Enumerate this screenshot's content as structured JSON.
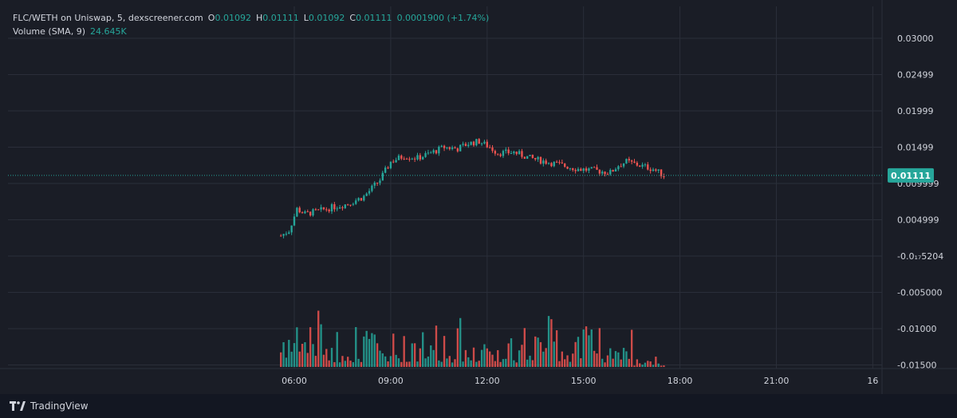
{
  "header": {
    "symbol": "FLC/WETH on Uniswap, 5, dexscreener.com",
    "o_label": "O",
    "o_value": "0.01092",
    "h_label": "H",
    "h_value": "0.01111",
    "l_label": "L",
    "l_value": "0.01092",
    "c_label": "C",
    "c_value": "0.01111",
    "change": "0.0001900 (+1.74%)",
    "volume_label": "Volume (SMA, 9)",
    "volume_value": "24.645K"
  },
  "footer": {
    "brand": "TradingView"
  },
  "colors": {
    "background": "#1a1d26",
    "grid": "#2a2e39",
    "up": "#26a69a",
    "down": "#ef5350",
    "price_tag": "#26a69a",
    "text": "#d1d4dc"
  },
  "chart_data": {
    "type": "candlestick",
    "price_axis_ticks": [
      "0.03000",
      "0.02499",
      "0.01999",
      "0.01499",
      "0.009999",
      "0.004999",
      "-0.0₁₇5204",
      "-0.005000",
      "-0.01000",
      "-0.01500"
    ],
    "time_axis_ticks": [
      "06:00",
      "09:00",
      "12:00",
      "15:00",
      "18:00",
      "21:00",
      "16"
    ],
    "last_price": "0.01111",
    "price_range": [
      -0.0175,
      0.0325
    ],
    "time_start": "05:25",
    "time_range_hours": [
      5.0,
      22.5
    ],
    "candle_interval_minutes": 5,
    "price_path_anchors": [
      {
        "t": "05:35",
        "p": 0.0028
      },
      {
        "t": "05:50",
        "p": 0.0035
      },
      {
        "t": "06:05",
        "p": 0.0065
      },
      {
        "t": "06:20",
        "p": 0.0058
      },
      {
        "t": "06:45",
        "p": 0.0062
      },
      {
        "t": "07:10",
        "p": 0.0067
      },
      {
        "t": "07:40",
        "p": 0.0072
      },
      {
        "t": "08:10",
        "p": 0.0082
      },
      {
        "t": "08:40",
        "p": 0.0105
      },
      {
        "t": "09:00",
        "p": 0.013
      },
      {
        "t": "09:25",
        "p": 0.0138
      },
      {
        "t": "09:50",
        "p": 0.0135
      },
      {
        "t": "10:15",
        "p": 0.0142
      },
      {
        "t": "10:40",
        "p": 0.015
      },
      {
        "t": "11:05",
        "p": 0.0148
      },
      {
        "t": "11:25",
        "p": 0.0155
      },
      {
        "t": "11:45",
        "p": 0.0158
      },
      {
        "t": "12:05",
        "p": 0.015
      },
      {
        "t": "12:20",
        "p": 0.0142
      },
      {
        "t": "12:50",
        "p": 0.0143
      },
      {
        "t": "13:20",
        "p": 0.0135
      },
      {
        "t": "13:50",
        "p": 0.013
      },
      {
        "t": "14:20",
        "p": 0.0125
      },
      {
        "t": "14:50",
        "p": 0.012
      },
      {
        "t": "15:20",
        "p": 0.0118
      },
      {
        "t": "15:50",
        "p": 0.0115
      },
      {
        "t": "16:05",
        "p": 0.0125
      },
      {
        "t": "16:20",
        "p": 0.013
      },
      {
        "t": "16:45",
        "p": 0.0125
      },
      {
        "t": "17:10",
        "p": 0.012
      },
      {
        "t": "17:30",
        "p": 0.0111
      }
    ],
    "volume_bars_visible": true
  }
}
